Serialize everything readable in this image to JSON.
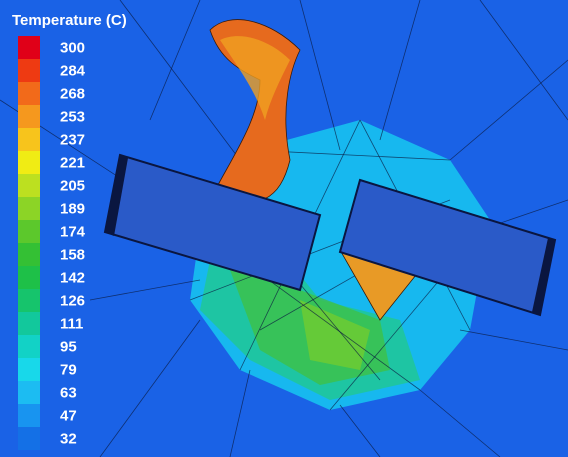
{
  "legend": {
    "title": "Temperature (C)",
    "entries": [
      {
        "label": 300,
        "color": "#e00018"
      },
      {
        "label": 284,
        "color": "#ee3a12"
      },
      {
        "label": 268,
        "color": "#f26a1a"
      },
      {
        "label": 253,
        "color": "#f5981e"
      },
      {
        "label": 237,
        "color": "#f7c41c"
      },
      {
        "label": 221,
        "color": "#f0ec14"
      },
      {
        "label": 205,
        "color": "#bce020"
      },
      {
        "label": 189,
        "color": "#8cd426"
      },
      {
        "label": 174,
        "color": "#5cc82c"
      },
      {
        "label": 158,
        "color": "#34c034"
      },
      {
        "label": 142,
        "color": "#1ec048"
      },
      {
        "label": 126,
        "color": "#16c46c"
      },
      {
        "label": 111,
        "color": "#12c89c"
      },
      {
        "label": 95,
        "color": "#12d2c6"
      },
      {
        "label": 79,
        "color": "#18d8ea"
      },
      {
        "label": 63,
        "color": "#1cbcf2"
      },
      {
        "label": 47,
        "color": "#1894f0"
      },
      {
        "label": 32,
        "color": "#1470e6"
      }
    ]
  }
}
